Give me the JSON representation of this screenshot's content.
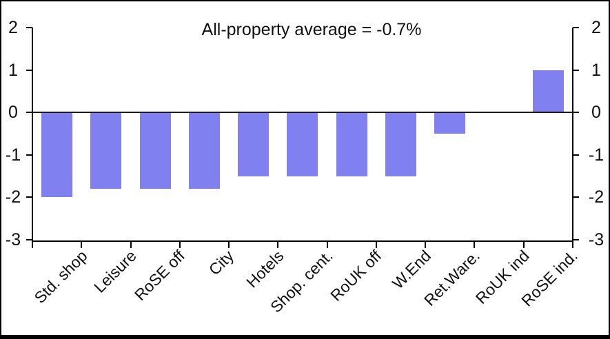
{
  "chart_data": {
    "type": "bar",
    "title": "All-property average = -0.7%",
    "categories": [
      "Std. shop",
      "Leisure",
      "RoSE off",
      "City",
      "Hotels",
      "Shop. cent.",
      "RoUK off",
      "W.End",
      "Ret.Ware.",
      "RoUK ind",
      "RoSE ind."
    ],
    "values": [
      -2.0,
      -1.8,
      -1.8,
      -1.8,
      -1.5,
      -1.5,
      -1.5,
      -1.5,
      -0.5,
      0.0,
      1.0
    ],
    "xlabel": "",
    "ylabel": "",
    "ylim": [
      -3,
      2
    ],
    "y_ticks": [
      2,
      1,
      0,
      -1,
      -2,
      -3
    ],
    "grid": false,
    "legend": false,
    "dual_value_axis": true,
    "category_label_rotation_deg": 45,
    "bar_color": "#8080F0",
    "axis_color": "#000000",
    "zero_line_color": "#1a1a1a",
    "background_color": "#FFFFFF",
    "frame_color": "#000000"
  }
}
